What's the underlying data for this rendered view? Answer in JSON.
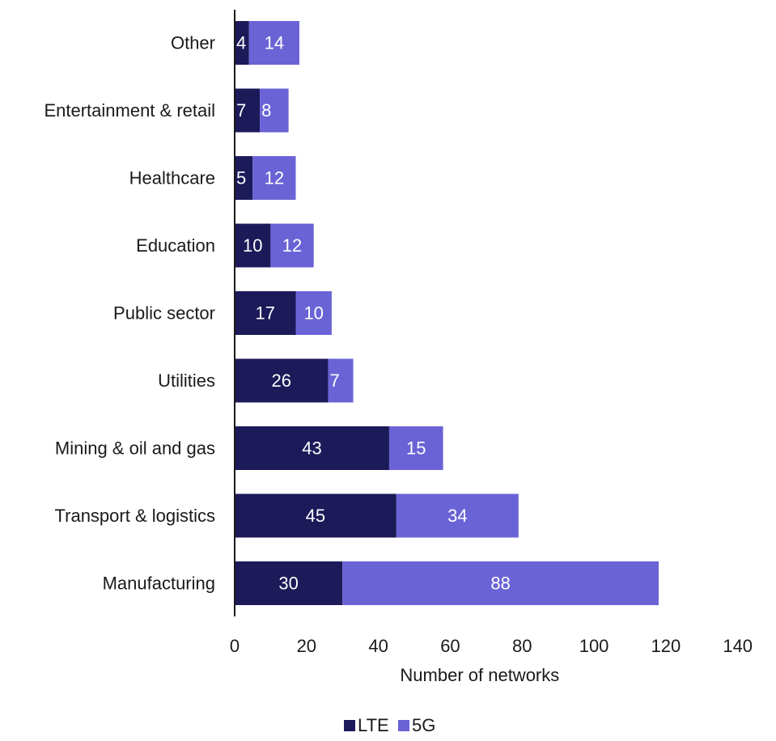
{
  "chart_data": {
    "type": "bar",
    "orientation": "horizontal",
    "stacked": true,
    "categories": [
      "Other",
      "Entertainment & retail",
      "Healthcare",
      "Education",
      "Public sector",
      "Utilities",
      "Mining & oil and gas",
      "Transport & logistics",
      "Manufacturing"
    ],
    "series": [
      {
        "name": "LTE",
        "color": "#1c1a59",
        "values": [
          4,
          7,
          5,
          10,
          17,
          26,
          43,
          45,
          30
        ]
      },
      {
        "name": "5G",
        "color": "#6a63d6",
        "values": [
          14,
          8,
          12,
          12,
          10,
          7,
          15,
          34,
          88
        ]
      }
    ],
    "title": "",
    "xlabel": "Number of networks",
    "ylabel": "",
    "xlim": [
      0,
      140
    ],
    "xticks": [
      "0",
      "20",
      "40",
      "60",
      "80",
      "100",
      "120",
      "140"
    ],
    "grid": false,
    "legend": "bottom-center",
    "data_labels": true
  }
}
